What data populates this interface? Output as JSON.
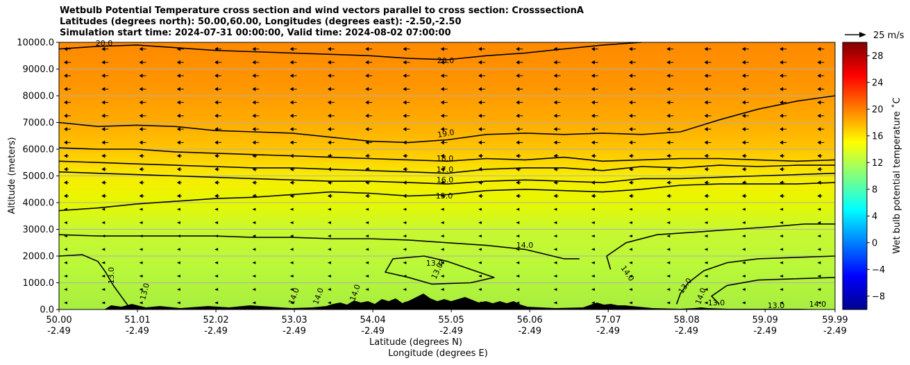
{
  "chart_data": {
    "type": "contour",
    "title_lines": [
      "Wetbulb Potential Temperature cross section and wind vectors parallel to cross section: CrosssectionA",
      "Latitudes (degrees north): 50.00,60.00, Longitudes (degrees east): -2.50,-2.50",
      "Simulation start time: 2024-07-31 00:00:00, Valid time: 2024-08-02 07:00:00"
    ],
    "ylabel": "Altitude (meters)",
    "xlabel_primary": "Latitude (degrees N)",
    "xlabel_secondary": "Longitude (degrees E)",
    "ylim": [
      0,
      10000
    ],
    "xlim": [
      50.0,
      59.99
    ],
    "y_ticks": [
      "0.0",
      "1000.0",
      "2000.0",
      "3000.0",
      "4000.0",
      "5000.0",
      "6000.0",
      "7000.0",
      "8000.0",
      "9000.0",
      "10000.0"
    ],
    "x_ticks_lat": [
      "50.00",
      "51.01",
      "52.02",
      "53.03",
      "54.04",
      "55.05",
      "56.06",
      "57.07",
      "58.08",
      "59.09",
      "59.99"
    ],
    "x_ticks_lon": [
      "-2.49",
      "-2.49",
      "-2.49",
      "-2.49",
      "-2.49",
      "-2.49",
      "-2.49",
      "-2.49",
      "-2.49",
      "-2.49",
      "-2.49"
    ],
    "grid": "horizontal",
    "quiver_key": "25 m/s",
    "colorbar": {
      "label": "Wet bulb potential temperature ˚C",
      "range": [
        -10,
        30
      ],
      "ticks": [
        "−8",
        "−4",
        "0",
        "4",
        "8",
        "12",
        "16",
        "20",
        "24",
        "28"
      ],
      "tick_values": [
        -8,
        -4,
        0,
        4,
        8,
        12,
        16,
        20,
        24,
        28
      ]
    },
    "contour_labels": [
      "20.0",
      "19.0",
      "18.0",
      "17.0",
      "16.0",
      "15.0",
      "14.0",
      "13.0"
    ],
    "contour_levels": [
      {
        "level": 20.0,
        "points": [
          [
            50.0,
            9750
          ],
          [
            50.5,
            9850
          ],
          [
            51.0,
            9900
          ],
          [
            51.5,
            9800
          ],
          [
            52.0,
            9700
          ],
          [
            52.5,
            9650
          ],
          [
            53.0,
            9600
          ],
          [
            53.5,
            9550
          ],
          [
            54.0,
            9500
          ],
          [
            54.5,
            9400
          ],
          [
            55.0,
            9350
          ],
          [
            55.5,
            9500
          ],
          [
            56.0,
            9600
          ],
          [
            56.5,
            9750
          ],
          [
            57.0,
            9900
          ],
          [
            57.5,
            10000
          ]
        ]
      },
      {
        "level": 19.0,
        "points": [
          [
            50.0,
            7000
          ],
          [
            50.5,
            6850
          ],
          [
            51.0,
            6900
          ],
          [
            51.5,
            6850
          ],
          [
            52.0,
            6700
          ],
          [
            52.5,
            6650
          ],
          [
            53.0,
            6600
          ],
          [
            53.5,
            6450
          ],
          [
            54.0,
            6300
          ],
          [
            54.5,
            6250
          ],
          [
            55.0,
            6350
          ],
          [
            55.5,
            6550
          ],
          [
            56.0,
            6600
          ],
          [
            56.5,
            6550
          ],
          [
            57.0,
            6600
          ],
          [
            57.5,
            6550
          ],
          [
            58.0,
            6650
          ],
          [
            58.5,
            7100
          ],
          [
            59.0,
            7500
          ],
          [
            59.5,
            7800
          ],
          [
            59.99,
            8000
          ]
        ]
      },
      {
        "level": 18.0,
        "points": [
          [
            50.0,
            6050
          ],
          [
            50.5,
            6000
          ],
          [
            51.0,
            6000
          ],
          [
            51.5,
            5900
          ],
          [
            52.0,
            5850
          ],
          [
            52.5,
            5800
          ],
          [
            53.0,
            5750
          ],
          [
            53.5,
            5700
          ],
          [
            54.0,
            5650
          ],
          [
            54.5,
            5600
          ],
          [
            55.0,
            5550
          ],
          [
            55.5,
            5650
          ],
          [
            56.0,
            5600
          ],
          [
            56.5,
            5700
          ],
          [
            57.0,
            5550
          ],
          [
            57.5,
            5600
          ],
          [
            58.0,
            5650
          ],
          [
            58.5,
            5650
          ],
          [
            59.0,
            5600
          ],
          [
            59.5,
            5550
          ],
          [
            59.99,
            5600
          ]
        ]
      },
      {
        "level": 17.0,
        "points": [
          [
            50.0,
            5550
          ],
          [
            50.5,
            5500
          ],
          [
            51.0,
            5450
          ],
          [
            51.5,
            5400
          ],
          [
            52.0,
            5350
          ],
          [
            52.5,
            5300
          ],
          [
            53.0,
            5300
          ],
          [
            53.5,
            5250
          ],
          [
            54.0,
            5200
          ],
          [
            54.5,
            5150
          ],
          [
            55.0,
            5100
          ],
          [
            55.5,
            5250
          ],
          [
            56.0,
            5300
          ],
          [
            56.5,
            5300
          ],
          [
            57.0,
            5200
          ],
          [
            57.5,
            5350
          ],
          [
            58.0,
            5300
          ],
          [
            58.5,
            5400
          ],
          [
            59.0,
            5350
          ],
          [
            59.5,
            5400
          ],
          [
            59.99,
            5400
          ]
        ]
      },
      {
        "level": 16.0,
        "points": [
          [
            50.0,
            5150
          ],
          [
            50.5,
            5100
          ],
          [
            51.0,
            5050
          ],
          [
            51.5,
            5000
          ],
          [
            52.0,
            4950
          ],
          [
            52.5,
            4900
          ],
          [
            53.0,
            4850
          ],
          [
            53.5,
            4800
          ],
          [
            54.0,
            4800
          ],
          [
            54.5,
            4750
          ],
          [
            55.0,
            4700
          ],
          [
            55.5,
            4800
          ],
          [
            56.0,
            4850
          ],
          [
            56.5,
            4800
          ],
          [
            57.0,
            4750
          ],
          [
            57.5,
            4900
          ],
          [
            58.0,
            4900
          ],
          [
            58.5,
            4950
          ],
          [
            59.0,
            5000
          ],
          [
            59.5,
            5050
          ],
          [
            59.99,
            5100
          ]
        ]
      },
      {
        "level": 15.0,
        "points": [
          [
            50.0,
            3700
          ],
          [
            50.5,
            3800
          ],
          [
            51.0,
            3950
          ],
          [
            51.5,
            4050
          ],
          [
            52.0,
            4150
          ],
          [
            52.5,
            4200
          ],
          [
            53.0,
            4300
          ],
          [
            53.5,
            4400
          ],
          [
            54.0,
            4350
          ],
          [
            54.5,
            4250
          ],
          [
            55.0,
            4300
          ],
          [
            55.5,
            4450
          ],
          [
            56.0,
            4500
          ],
          [
            56.5,
            4450
          ],
          [
            57.0,
            4400
          ],
          [
            57.5,
            4500
          ],
          [
            58.0,
            4650
          ],
          [
            58.5,
            4700
          ],
          [
            59.0,
            4700
          ],
          [
            59.5,
            4700
          ],
          [
            59.99,
            4750
          ]
        ]
      },
      {
        "level": 14.0,
        "points": [
          [
            50.0,
            2800
          ],
          [
            50.5,
            2750
          ],
          [
            51.0,
            2750
          ],
          [
            51.5,
            2750
          ],
          [
            52.0,
            2750
          ],
          [
            52.5,
            2700
          ],
          [
            53.0,
            2700
          ],
          [
            53.5,
            2650
          ],
          [
            54.0,
            2650
          ],
          [
            54.5,
            2600
          ],
          [
            55.0,
            2500
          ],
          [
            55.5,
            2400
          ],
          [
            56.0,
            2250
          ],
          [
            56.5,
            1900
          ],
          [
            56.7,
            1900
          ]
        ]
      },
      {
        "level": 14.0,
        "points": [
          [
            57.1,
            1500
          ],
          [
            57.05,
            2000
          ],
          [
            57.3,
            2500
          ],
          [
            57.7,
            2800
          ],
          [
            58.2,
            2900
          ],
          [
            58.7,
            3000
          ],
          [
            59.2,
            3100
          ],
          [
            59.6,
            3200
          ],
          [
            59.99,
            3200
          ]
        ]
      },
      {
        "level": 13.0,
        "points": [
          [
            50.0,
            2000
          ],
          [
            50.3,
            2050
          ],
          [
            50.5,
            1800
          ],
          [
            50.6,
            1400
          ],
          [
            50.7,
            900
          ],
          [
            50.8,
            500
          ],
          [
            50.9,
            100
          ]
        ]
      },
      {
        "level": 13.0,
        "points": [
          [
            54.5,
            1200
          ],
          [
            54.2,
            1400
          ],
          [
            54.3,
            1900
          ],
          [
            54.7,
            2000
          ],
          [
            55.0,
            1800
          ],
          [
            55.3,
            1500
          ],
          [
            55.6,
            1200
          ],
          [
            55.3,
            1000
          ],
          [
            54.8,
            950
          ],
          [
            54.5,
            1200
          ]
        ]
      },
      {
        "level": 13.0,
        "points": [
          [
            59.99,
            2000
          ],
          [
            59.5,
            1950
          ],
          [
            59.0,
            1900
          ],
          [
            58.6,
            1750
          ],
          [
            58.3,
            1450
          ],
          [
            58.1,
            1000
          ],
          [
            58.0,
            600
          ],
          [
            57.95,
            200
          ]
        ]
      },
      {
        "level": 13.0,
        "points": [
          [
            59.99,
            1200
          ],
          [
            59.5,
            1150
          ],
          [
            59.0,
            1100
          ],
          [
            58.6,
            900
          ],
          [
            58.4,
            500
          ],
          [
            58.5,
            200
          ]
        ]
      }
    ]
  }
}
